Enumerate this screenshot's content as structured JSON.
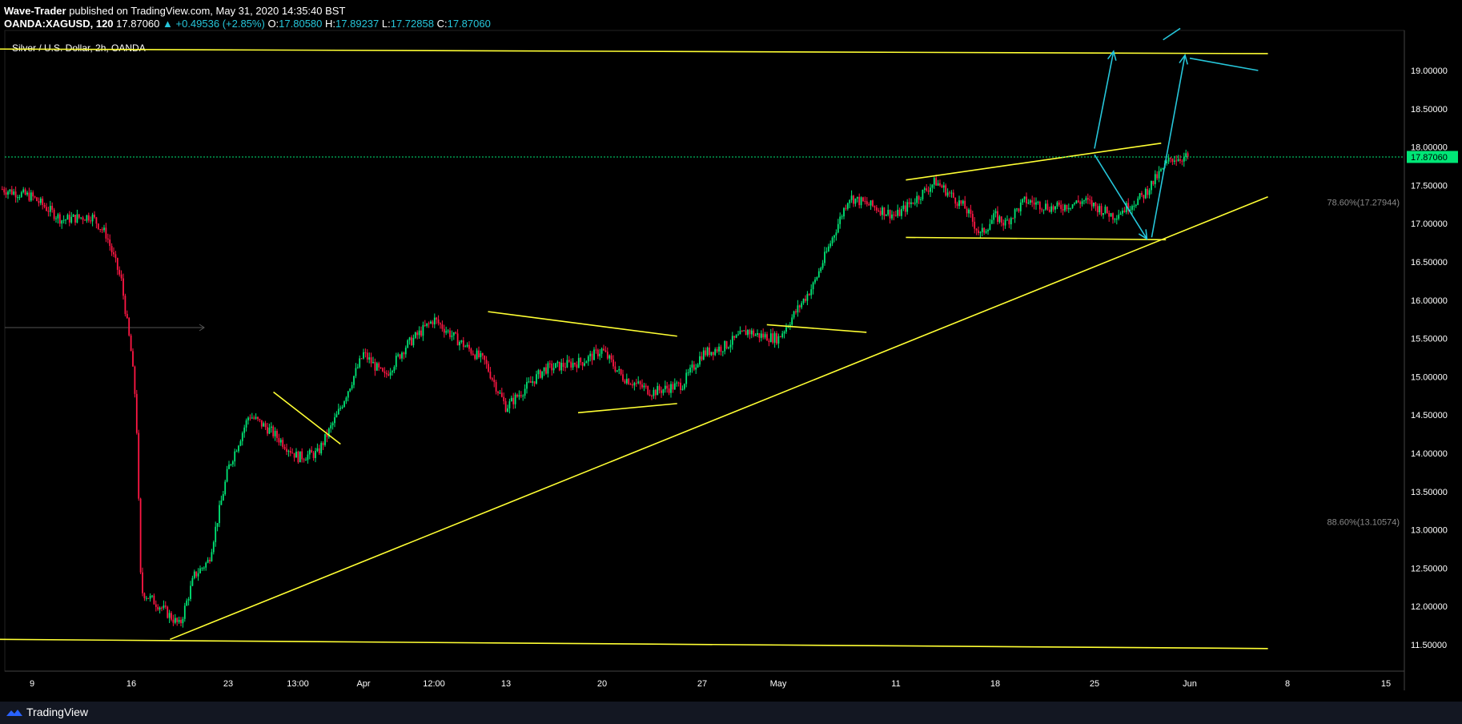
{
  "header": {
    "author": "Wave-Trader",
    "published_text": "published on TradingView.com, May 31, 2020 14:35:40 BST",
    "symbol": "OANDA:XAGUSD, 120",
    "last": "17.87060",
    "change": "▲ +0.49536 (+2.85%)",
    "o_label": "O:",
    "o_value": "17.80580",
    "h_label": "H:",
    "h_value": "17.89237",
    "l_label": "L:",
    "l_value": "17.72858",
    "c_label": "C:",
    "c_value": "17.87060"
  },
  "footer": {
    "brand": "TradingView"
  },
  "colors": {
    "up": "#00e676",
    "down": "#ff1744",
    "trendline": "#ffff33",
    "arrow": "#26c6da",
    "axis_text": "#ffffff",
    "price_tag": "#00e676"
  },
  "chart_data": {
    "type": "candlestick",
    "title": "Silver / U.S. Dollar, 2h, OANDA",
    "x_ticks": [
      "9",
      "16",
      "23",
      "13:00",
      "Apr",
      "12:00",
      "13",
      "20",
      "27",
      "May",
      "11",
      "18",
      "25",
      "Jun",
      "8",
      "15"
    ],
    "y_ticks": [
      "19.00000",
      "18.50000",
      "18.00000",
      "17.50000",
      "17.00000",
      "16.50000",
      "16.00000",
      "15.50000",
      "15.00000",
      "14.50000",
      "14.00000",
      "13.50000",
      "13.00000",
      "12.50000",
      "12.00000",
      "11.50000"
    ],
    "ylim": [
      11.18,
      19.65
    ],
    "current_price": "17.87060",
    "fib_levels": [
      {
        "label": "78.60%(17.27944)",
        "value": 17.27944
      },
      {
        "label": "88.60%(13.10574)",
        "value": 13.10574
      }
    ],
    "price_path_x_tick_index": [
      -0.3,
      0.0,
      0.3,
      0.6,
      0.75,
      0.9,
      1.0,
      1.05,
      1.1,
      1.3,
      1.5,
      1.65,
      1.8,
      2.0,
      2.3,
      2.6,
      3.0,
      3.3,
      3.6,
      4.0,
      4.3,
      4.6,
      5.0,
      5.3,
      5.7,
      6.0,
      6.4,
      6.8,
      7.0,
      7.2,
      7.5,
      7.8,
      8.0,
      8.3,
      8.6,
      8.7,
      9.0,
      9.3,
      9.6,
      10.0,
      10.4,
      10.7,
      10.85,
      11.0,
      11.1,
      11.3,
      11.6,
      11.9,
      12.2,
      12.5,
      12.8,
      13.0
    ],
    "price_path_close": [
      17.45,
      17.35,
      17.05,
      17.1,
      16.85,
      16.25,
      15.3,
      14.6,
      12.2,
      12.0,
      11.75,
      12.4,
      12.6,
      13.8,
      14.5,
      14.3,
      13.95,
      14.0,
      14.5,
      15.3,
      15.0,
      15.4,
      15.75,
      15.5,
      15.2,
      14.6,
      15.1,
      15.2,
      15.35,
      15.0,
      14.8,
      14.9,
      15.3,
      15.4,
      15.6,
      15.55,
      15.5,
      16.2,
      17.35,
      17.1,
      17.55,
      17.2,
      16.85,
      17.1,
      17.0,
      17.3,
      17.2,
      17.3,
      17.1,
      17.35,
      17.85,
      17.87
    ],
    "trendlines": [
      {
        "name": "top-resistance",
        "points": [
          [
            -0.35,
            19.28
          ],
          [
            13.8,
            19.22
          ]
        ]
      },
      {
        "name": "bottom-support",
        "points": [
          [
            -0.35,
            11.57
          ],
          [
            13.8,
            11.45
          ]
        ]
      },
      {
        "name": "rising-support",
        "points": [
          [
            1.4,
            11.57
          ],
          [
            13.8,
            17.35
          ]
        ]
      },
      {
        "name": "wedge-mar-upper",
        "points": [
          [
            2.65,
            14.8
          ],
          [
            3.65,
            14.12
          ]
        ]
      },
      {
        "name": "apr-triangle-upper",
        "points": [
          [
            5.75,
            15.85
          ],
          [
            7.75,
            15.53
          ]
        ]
      },
      {
        "name": "apr-triangle-lower",
        "points": [
          [
            6.75,
            14.53
          ],
          [
            7.75,
            14.65
          ]
        ]
      },
      {
        "name": "may-flag",
        "points": [
          [
            8.85,
            15.68
          ],
          [
            9.75,
            15.58
          ]
        ]
      },
      {
        "name": "range-upper",
        "points": [
          [
            10.1,
            17.57
          ],
          [
            12.7,
            18.05
          ]
        ]
      },
      {
        "name": "range-lower",
        "points": [
          [
            10.1,
            16.82
          ],
          [
            12.75,
            16.79
          ]
        ]
      }
    ],
    "projection_arrows": [
      {
        "name": "arrow-up-1",
        "points": [
          [
            12.0,
            17.98
          ],
          [
            12.2,
            19.25
          ]
        ]
      },
      {
        "name": "arrow-down",
        "points": [
          [
            12.0,
            17.9
          ],
          [
            12.55,
            16.8
          ]
        ]
      },
      {
        "name": "arrow-up-2",
        "points": [
          [
            12.6,
            16.82
          ],
          [
            12.95,
            19.2
          ]
        ]
      },
      {
        "name": "arrow-out",
        "points": [
          [
            13.0,
            19.16
          ],
          [
            13.7,
            19.0
          ]
        ]
      }
    ]
  }
}
